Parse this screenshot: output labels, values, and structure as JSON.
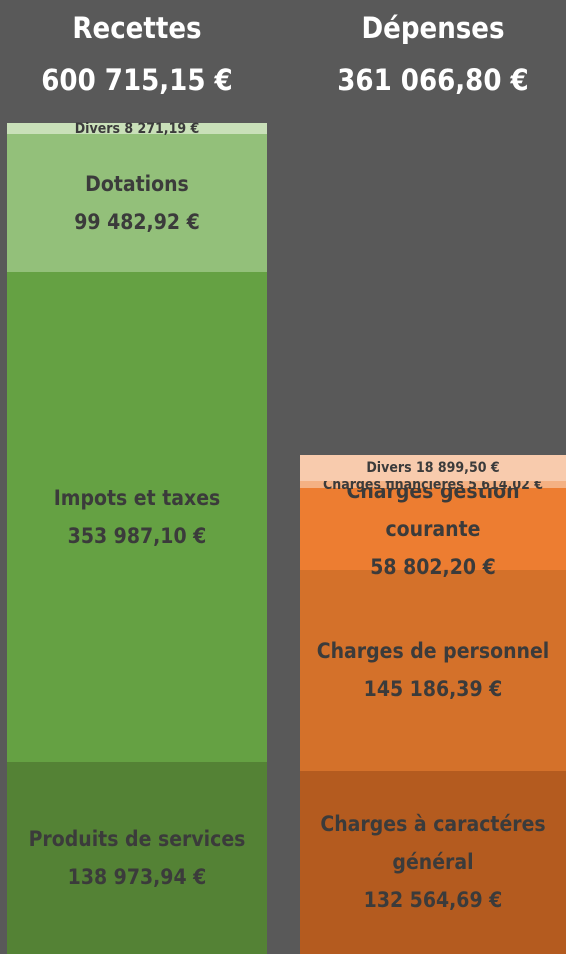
{
  "chart_data": {
    "type": "stacked_bar",
    "columns": [
      {
        "name": "Recettes",
        "total": 600715.15,
        "total_label": "600 715,15 €",
        "segments": [
          {
            "name": "Produits de services",
            "value": 138973.94,
            "value_label": "138 973,94 €",
            "color": "#548235"
          },
          {
            "name": "Impots et taxes",
            "value": 353987.1,
            "value_label": "353 987,10 €",
            "color": "#65a143"
          },
          {
            "name": "Dotations",
            "value": 99482.92,
            "value_label": "99 482,92 €",
            "color": "#93c07a"
          },
          {
            "name": "Divers",
            "value": 8271.19,
            "value_label": "8 271,19 €",
            "color": "#c9e0b9"
          }
        ]
      },
      {
        "name": "Dépenses",
        "total": 361066.8,
        "total_label": "361 066,80 €",
        "segments": [
          {
            "name": "Charges à caractéres général",
            "value": 132564.69,
            "value_label": "132 564,69 €",
            "color": "#b45b1f"
          },
          {
            "name": "Charges de personnel",
            "value": 145186.39,
            "value_label": "145 186,39 €",
            "color": "#d4712a"
          },
          {
            "name": "Charges gestion courante",
            "value": 58802.2,
            "value_label": "58 802,20 €",
            "color": "#ed7d31"
          },
          {
            "name": "Charges financières",
            "value": 5614.02,
            "value_label": "5 614,02 €",
            "color": "#f4b183"
          },
          {
            "name": "Divers",
            "value": 18899.5,
            "value_label": "18 899,50 €",
            "color": "#f8cbad"
          }
        ]
      }
    ]
  }
}
